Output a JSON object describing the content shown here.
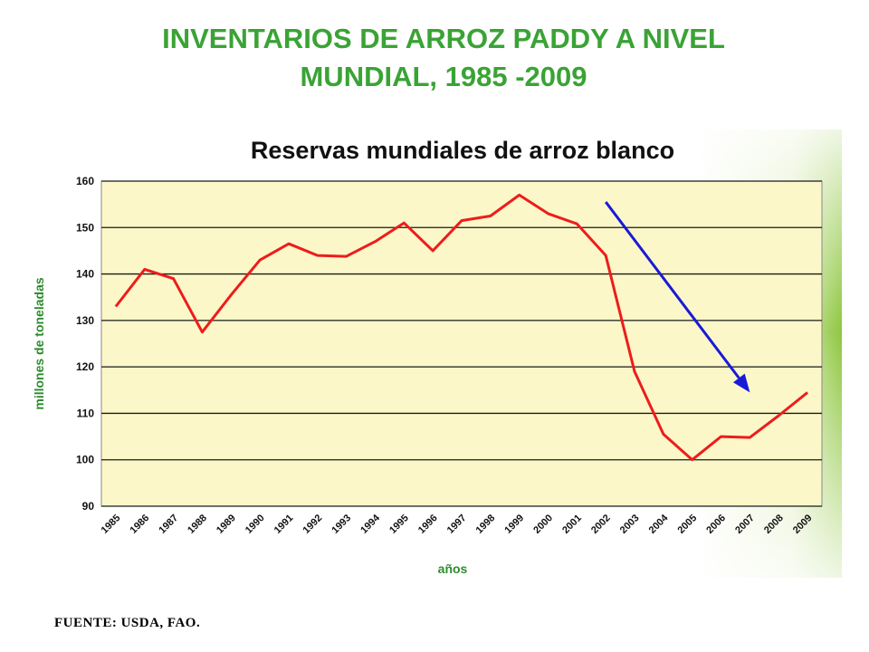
{
  "slide": {
    "title_line1": "INVENTARIOS DE ARROZ PADDY A NIVEL",
    "title_line2": "MUNDIAL, 1985 -2009",
    "source": "FUENTE: USDA, FAO."
  },
  "colors": {
    "title": "#3aa335",
    "plot_bg": "#fbf7c8",
    "series_line": "#ee1c1c",
    "arrow": "#1a1ad8",
    "panel_green": "#8dc63f"
  },
  "chart_data": {
    "type": "line",
    "title": "Reservas mundiales de arroz blanco",
    "xlabel": "años",
    "ylabel": "millones de toneladas",
    "ylim": [
      90,
      160
    ],
    "yticks": [
      90,
      100,
      110,
      120,
      130,
      140,
      150,
      160
    ],
    "grid": true,
    "categories": [
      "1985",
      "1986",
      "1987",
      "1988",
      "1989",
      "1990",
      "1991",
      "1992",
      "1993",
      "1994",
      "1995",
      "1996",
      "1997",
      "1998",
      "1999",
      "2000",
      "2001",
      "2002",
      "2003",
      "2004",
      "2005",
      "2006",
      "2007",
      "2008",
      "2009"
    ],
    "series": [
      {
        "values": [
          133,
          141,
          139,
          127.5,
          135.5,
          143,
          146.5,
          144,
          143.8,
          147,
          151,
          145,
          151.5,
          152.5,
          157,
          153,
          150.8,
          144,
          119,
          105.5,
          100,
          105,
          104.8,
          109.5,
          114.5
        ]
      }
    ],
    "annotations": [
      {
        "type": "arrow",
        "from": {
          "x": "2002",
          "y": 155.5
        },
        "to": {
          "x": "2007",
          "y": 114.5
        }
      }
    ]
  }
}
